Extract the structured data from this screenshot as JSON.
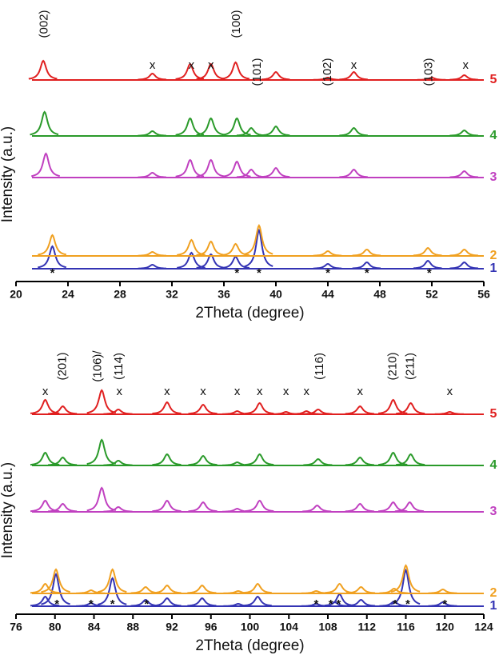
{
  "chart_data": [
    {
      "type": "line",
      "xlabel": "2Theta (degree)",
      "ylabel": "Intensity (a.u.)",
      "xlim": [
        20,
        56
      ],
      "xticks": [
        20,
        24,
        28,
        32,
        36,
        40,
        44,
        48,
        52,
        56
      ],
      "series": [
        {
          "name": "1",
          "color": "#3434b4",
          "x": [
            22.8,
            30.5,
            33.5,
            35.0,
            36.9,
            38.7,
            44.0,
            47.0,
            51.7,
            54.5
          ],
          "values": [
            28,
            5,
            20,
            18,
            15,
            48,
            6,
            8,
            10,
            8
          ]
        },
        {
          "name": "2",
          "color": "#f0a020",
          "x": [
            22.8,
            30.5,
            33.5,
            35.0,
            36.9,
            38.7,
            44.0,
            47.0,
            51.7,
            54.5
          ],
          "values": [
            26,
            5,
            20,
            18,
            15,
            38,
            6,
            8,
            10,
            8
          ]
        },
        {
          "name": "3",
          "color": "#c040c0",
          "x": [
            22.3,
            30.5,
            33.4,
            35.0,
            37.0,
            38.1,
            40.0,
            46.0,
            54.5
          ],
          "values": [
            30,
            6,
            22,
            22,
            20,
            10,
            12,
            10,
            8
          ]
        },
        {
          "name": "4",
          "color": "#2a9a2a",
          "x": [
            22.2,
            30.5,
            33.4,
            35.0,
            37.0,
            38.1,
            40.0,
            46.0,
            54.5
          ],
          "values": [
            30,
            6,
            22,
            22,
            22,
            10,
            12,
            10,
            7
          ]
        },
        {
          "name": "5",
          "color": "#e02020",
          "x": [
            22.1,
            30.5,
            33.4,
            35.0,
            36.9,
            40.0,
            44.0,
            46.0,
            52.0,
            54.5
          ],
          "values": [
            24,
            8,
            20,
            20,
            22,
            10,
            3,
            10,
            3,
            6
          ]
        }
      ],
      "peak_labels": [
        {
          "text": "(002)",
          "x": 22.2
        },
        {
          "text": "(100)",
          "x": 37.0
        },
        {
          "text": "(101)",
          "x": 38.6
        },
        {
          "text": "(102)",
          "x": 44.0
        },
        {
          "text": "(103)",
          "x": 51.8
        }
      ],
      "phase_marks": [
        {
          "text": "x",
          "x": 30.5
        },
        {
          "text": "x",
          "x": 33.5
        },
        {
          "text": "x",
          "x": 35.0
        },
        {
          "text": "x",
          "x": 46.0
        },
        {
          "text": "x",
          "x": 54.6
        }
      ],
      "substrate_marks": [
        {
          "text": "*",
          "x": 22.8
        },
        {
          "text": "*",
          "x": 37.0
        },
        {
          "text": "*",
          "x": 38.7
        },
        {
          "text": "*",
          "x": 44.0
        },
        {
          "text": "*",
          "x": 47.0
        },
        {
          "text": "*",
          "x": 51.8
        }
      ]
    },
    {
      "type": "line",
      "xlabel": "2Theta (degree)",
      "ylabel": "Intensity (a.u.)",
      "xlim": [
        76,
        124
      ],
      "xticks": [
        76,
        80,
        84,
        88,
        92,
        96,
        100,
        104,
        108,
        112,
        116,
        120,
        124
      ],
      "series": [
        {
          "name": "1",
          "color": "#3434b4",
          "x": [
            79.0,
            80.1,
            83.7,
            85.9,
            89.3,
            91.5,
            95.1,
            98.8,
            100.8,
            106.8,
            108.7,
            109.2,
            111.4,
            114.8,
            116.0,
            119.8
          ],
          "values": [
            12,
            40,
            4,
            35,
            8,
            10,
            10,
            3,
            12,
            3,
            5,
            15,
            8,
            6,
            45,
            5
          ]
        },
        {
          "name": "2",
          "color": "#f0a020",
          "x": [
            79.0,
            80.1,
            83.7,
            85.9,
            89.3,
            91.5,
            95.1,
            98.8,
            100.8,
            106.8,
            109.2,
            111.4,
            114.8,
            116.0,
            119.8
          ],
          "values": [
            12,
            30,
            4,
            30,
            8,
            10,
            10,
            3,
            12,
            3,
            12,
            8,
            6,
            35,
            5
          ]
        },
        {
          "name": "3",
          "color": "#c040c0",
          "x": [
            79.0,
            80.8,
            84.8,
            86.5,
            91.5,
            95.2,
            98.7,
            101.0,
            106.9,
            111.3,
            114.7,
            116.4
          ],
          "values": [
            14,
            10,
            30,
            6,
            14,
            12,
            4,
            14,
            8,
            10,
            12,
            12
          ]
        },
        {
          "name": "4",
          "color": "#2a9a2a",
          "x": [
            79.0,
            80.8,
            84.8,
            86.5,
            91.5,
            95.2,
            98.7,
            101.0,
            107.0,
            111.3,
            114.7,
            116.5
          ],
          "values": [
            16,
            10,
            32,
            6,
            14,
            12,
            4,
            14,
            8,
            10,
            16,
            14
          ]
        },
        {
          "name": "5",
          "color": "#e02020",
          "x": [
            79.0,
            80.8,
            84.8,
            86.5,
            91.5,
            95.2,
            98.7,
            101.0,
            103.7,
            105.8,
            107.0,
            111.3,
            114.7,
            116.5,
            120.5
          ],
          "values": [
            18,
            10,
            30,
            6,
            15,
            12,
            4,
            14,
            3,
            4,
            6,
            10,
            18,
            14,
            3
          ]
        }
      ],
      "peak_labels": [
        {
          "text": "(201)",
          "x": 80.8
        },
        {
          "text": "(106)/",
          "x": 84.4
        },
        {
          "text": "(114)",
          "x": 86.6
        },
        {
          "text": "(116)",
          "x": 107.2
        },
        {
          "text": "(210)",
          "x": 114.7
        },
        {
          "text": "(211)",
          "x": 116.5
        }
      ],
      "phase_marks": [
        {
          "text": "x",
          "x": 79.0
        },
        {
          "text": "x",
          "x": 86.6
        },
        {
          "text": "x",
          "x": 91.5
        },
        {
          "text": "x",
          "x": 95.2
        },
        {
          "text": "x",
          "x": 98.7
        },
        {
          "text": "x",
          "x": 101.0
        },
        {
          "text": "x",
          "x": 103.7
        },
        {
          "text": "x",
          "x": 105.8
        },
        {
          "text": "x",
          "x": 111.3
        },
        {
          "text": "x",
          "x": 120.5
        }
      ],
      "substrate_marks": [
        {
          "text": "*",
          "x": 80.2
        },
        {
          "text": "*",
          "x": 83.7
        },
        {
          "text": "*",
          "x": 85.9
        },
        {
          "text": "*",
          "x": 89.4
        },
        {
          "text": "*",
          "x": 106.8
        },
        {
          "text": "*",
          "x": 108.3
        },
        {
          "text": "*",
          "x": 109.1
        },
        {
          "text": "*",
          "x": 114.9
        },
        {
          "text": "*",
          "x": 116.2
        },
        {
          "text": "*",
          "x": 120.0
        }
      ]
    }
  ]
}
